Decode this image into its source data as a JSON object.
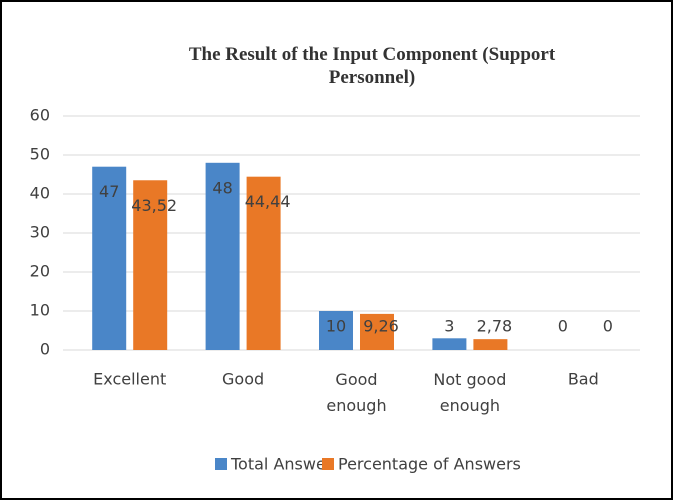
{
  "chart_data": {
    "type": "bar",
    "title": "The Result of the Input Component (Support Personnel)",
    "categories": [
      "Excellent",
      "Good",
      "Good enough",
      "Not good enough",
      "Bad"
    ],
    "series": [
      {
        "name": "Total Answer",
        "color": "#4a86c8",
        "values": [
          47,
          48,
          10,
          3,
          0
        ]
      },
      {
        "name": "Percentage of Answers",
        "color": "#e97826",
        "values": [
          43.52,
          44.44,
          9.26,
          2.78,
          0
        ],
        "value_labels": [
          "43,52",
          "44,44",
          "9,26",
          "2,78",
          "0"
        ]
      }
    ],
    "ylim": [
      0,
      60
    ],
    "yticks": [
      0,
      10,
      20,
      30,
      40,
      50,
      60
    ],
    "grid": true,
    "legend": "bottom"
  }
}
